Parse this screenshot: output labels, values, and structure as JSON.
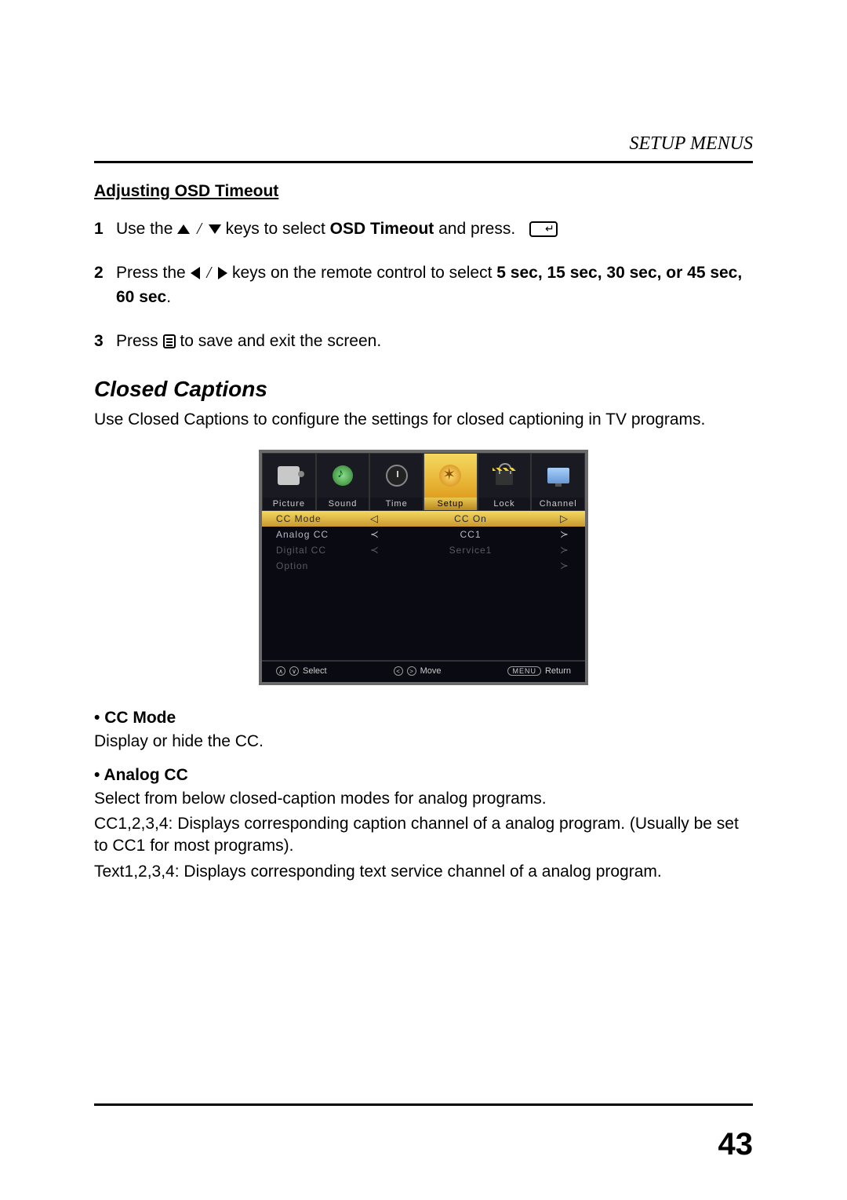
{
  "header": {
    "title": "SETUP MENUS"
  },
  "page_number": "43",
  "adjusting": {
    "subtitle": "Adjusting OSD Timeout",
    "steps": {
      "s1_a": "Use the",
      "s1_b": "keys to select ",
      "s1_bold": "OSD Timeout",
      "s1_c": " and press.",
      "s2_a": "Press the",
      "s2_b": "keys on the remote control to select  ",
      "s2_bold": "5 sec, 15 sec, 30 sec,  or 45 sec, 60 sec",
      "s2_c": ".",
      "s3_a": "Press ",
      "s3_b": " to save and exit the screen."
    }
  },
  "closed_captions": {
    "heading": "Closed Captions",
    "intro": "Use Closed Captions to configure the settings for closed captioning in TV programs."
  },
  "osd": {
    "tabs": {
      "picture": "Picture",
      "sound": "Sound",
      "time": "Time",
      "setup": "Setup",
      "lock": "Lock",
      "channel": "Channel"
    },
    "rows": {
      "r0": {
        "label": "CC Mode",
        "value": "CC On"
      },
      "r1": {
        "label": "Analog CC",
        "value": "CC1"
      },
      "r2": {
        "label": "Digital CC",
        "value": "Service1"
      },
      "r3": {
        "label": "Option",
        "value": ""
      }
    },
    "footer": {
      "select": "Select",
      "move": "Move",
      "menu": "MENU",
      "return": "Return"
    },
    "colors": {
      "background": "#0a0a12",
      "border": "#6a6a6a",
      "highlight_gradient_top": "#f5d960",
      "highlight_gradient_bottom": "#c89830",
      "text_normal": "#b8b8c8",
      "text_dim": "#5a5a66"
    }
  },
  "bullets": {
    "cc_mode": {
      "title": "CC Mode",
      "p1": "Display or hide the CC."
    },
    "analog_cc": {
      "title": "Analog CC",
      "p1": "Select from below closed-caption modes for analog programs.",
      "p2": "CC1,2,3,4: Displays corresponding caption channel of a analog program. (Usually be set to CC1 for most programs).",
      "p3": "Text1,2,3,4: Displays corresponding text service channel of a analog program."
    }
  }
}
